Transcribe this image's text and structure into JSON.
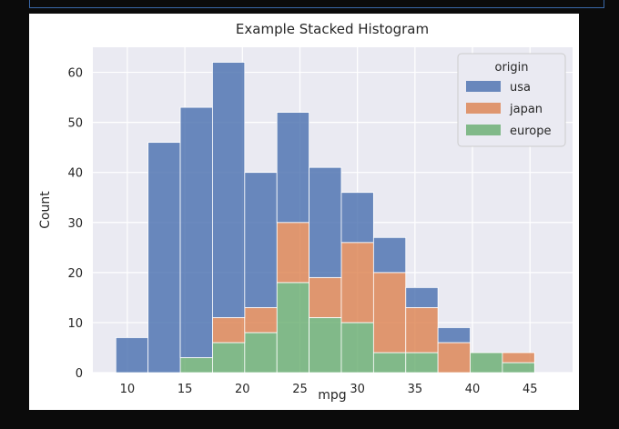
{
  "chart_data": {
    "type": "bar",
    "stacked": true,
    "title": "Example Stacked Histogram",
    "xlabel": "mpg",
    "ylabel": "Count",
    "xlim": [
      7.0,
      48.7
    ],
    "ylim": [
      0,
      65
    ],
    "x_ticks": [
      10,
      15,
      20,
      25,
      30,
      35,
      40,
      45
    ],
    "y_ticks": [
      0,
      10,
      20,
      30,
      40,
      50,
      60
    ],
    "grid": true,
    "bin_edges": [
      9.0,
      11.8,
      14.6,
      17.4,
      20.2,
      23.0,
      25.8,
      28.6,
      31.4,
      34.2,
      37.0,
      39.8,
      42.6,
      45.4,
      48.2
    ],
    "legend": {
      "title": "origin",
      "placement": "top-right"
    },
    "series": [
      {
        "name": "europe",
        "color": "#6aaf71",
        "values": [
          0,
          0,
          3,
          6,
          8,
          18,
          11,
          10,
          4,
          4,
          0,
          4,
          2,
          0
        ]
      },
      {
        "name": "japan",
        "color": "#dd8452",
        "values": [
          0,
          0,
          0,
          5,
          5,
          12,
          8,
          16,
          16,
          9,
          6,
          0,
          2,
          0
        ]
      },
      {
        "name": "usa",
        "color": "#4c72b0",
        "values": [
          7,
          46,
          50,
          51,
          27,
          22,
          22,
          10,
          7,
          4,
          3,
          0,
          0,
          0
        ]
      }
    ],
    "legend_order": [
      "usa",
      "japan",
      "europe"
    ]
  }
}
